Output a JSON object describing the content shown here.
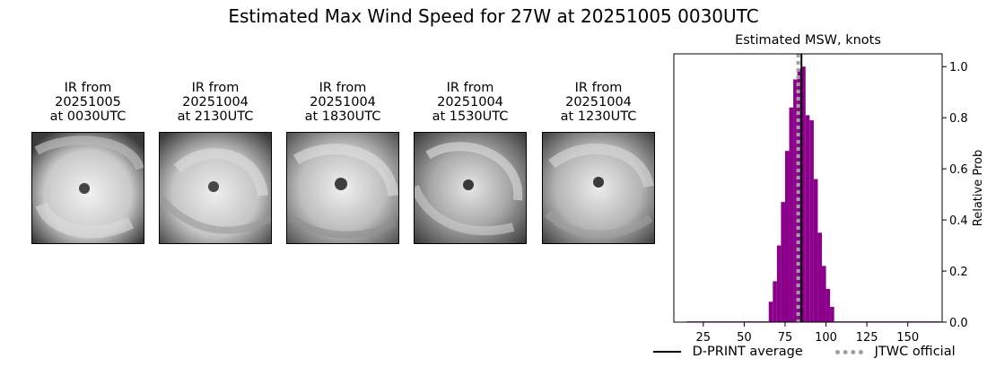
{
  "suptitle": "Estimated Max Wind Speed for 27W at 20251005 0030UTC",
  "ir_panels": [
    {
      "line1": "IR from",
      "line2": "20251005",
      "line3": "at 0030UTC"
    },
    {
      "line1": "IR from",
      "line2": "20251004",
      "line3": "at 2130UTC"
    },
    {
      "line1": "IR from",
      "line2": "20251004",
      "line3": "at 1830UTC"
    },
    {
      "line1": "IR from",
      "line2": "20251004",
      "line3": "at 1530UTC"
    },
    {
      "line1": "IR from",
      "line2": "20251004",
      "line3": "at 1230UTC"
    }
  ],
  "legend": {
    "dprint_label": "D-PRINT average",
    "jtwc_label": "JTWC official"
  },
  "colors": {
    "bars": "#8b008b",
    "dprint_line": "#000000",
    "jtwc_line": "#a0a0a0"
  },
  "chart_data": {
    "type": "bar",
    "title": "Estimated MSW, knots",
    "xlabel": "",
    "ylabel": "Relative Prob",
    "xlim": [
      7,
      171
    ],
    "ylim": [
      0,
      1.05
    ],
    "xticks": [
      25,
      50,
      75,
      100,
      125,
      150
    ],
    "yticks": [
      0.0,
      0.2,
      0.4,
      0.6,
      0.8,
      1.0
    ],
    "ytick_side": "right",
    "bin_width": 2.5,
    "bins_start": [
      15,
      17.5,
      20,
      22.5,
      25,
      27.5,
      30,
      32.5,
      35,
      37.5,
      40,
      42.5,
      45,
      47.5,
      50,
      52.5,
      55,
      57.5,
      60,
      62.5,
      65,
      67.5,
      70,
      72.5,
      75,
      77.5,
      80,
      82.5,
      85,
      87.5,
      90,
      92.5,
      95,
      97.5,
      100,
      102.5,
      105,
      107.5,
      110,
      112.5,
      115,
      117.5,
      120,
      122.5,
      125,
      127.5,
      130,
      132.5,
      135,
      137.5,
      140,
      142.5,
      145,
      147.5,
      150,
      152.5,
      155,
      157.5,
      160,
      162.5,
      165,
      167.5
    ],
    "values": [
      0.003,
      0.003,
      0.003,
      0.003,
      0.003,
      0.003,
      0.003,
      0.003,
      0.003,
      0.003,
      0.003,
      0.003,
      0.003,
      0.003,
      0.003,
      0.003,
      0.003,
      0.003,
      0.003,
      0.003,
      0.08,
      0.16,
      0.3,
      0.47,
      0.67,
      0.84,
      0.95,
      0.99,
      1.0,
      0.81,
      0.79,
      0.56,
      0.35,
      0.22,
      0.13,
      0.06,
      0.003,
      0.003,
      0.003,
      0.003,
      0.003,
      0.003,
      0.003,
      0.003,
      0.003,
      0.003,
      0.003,
      0.003,
      0.003,
      0.003,
      0.003,
      0.003,
      0.003,
      0.003,
      0.003,
      0.003,
      0.003,
      0.003,
      0.003,
      0.003,
      0.003,
      0.003
    ],
    "dprint_average": 85,
    "jtwc_official": 83,
    "legend_placement": "bottom"
  }
}
